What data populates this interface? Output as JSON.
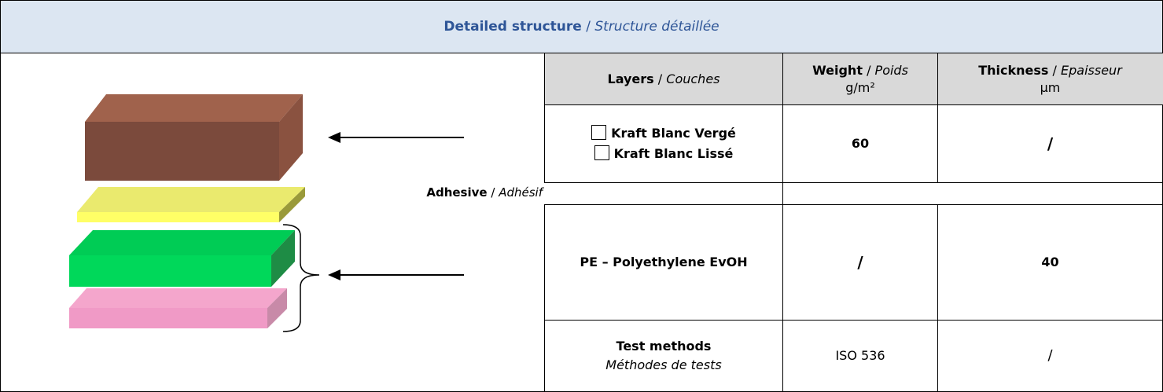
{
  "title": {
    "bold": "Detailed structure",
    "sep": "/",
    "italic": "Structure détaillée"
  },
  "adhesive_label": {
    "bold": "Adhesive",
    "sep": "/",
    "italic": "Adhésif"
  },
  "table": {
    "header": [
      {
        "bold": "Layers",
        "sep": "/",
        "italic": "Couches"
      },
      {
        "bold": "Weight",
        "sep": "/",
        "italic": "Poids",
        "unit": "g/m²"
      },
      {
        "bold": "Thickness",
        "sep": "/",
        "italic": "Epaisseur",
        "unit": "µm"
      }
    ],
    "rows": [
      {
        "layer_options": [
          "Kraft Blanc Vergé",
          "Kraft Blanc Lissé"
        ],
        "weight": 60,
        "thickness": "/"
      },
      {
        "layer": "PE – Polyethylene EvOH",
        "weight": "/",
        "thickness": 40
      },
      {
        "layer": "Test methods",
        "layer_italic": "Méthodes de tests",
        "weight": "ISO 536",
        "thickness": "/"
      }
    ]
  }
}
